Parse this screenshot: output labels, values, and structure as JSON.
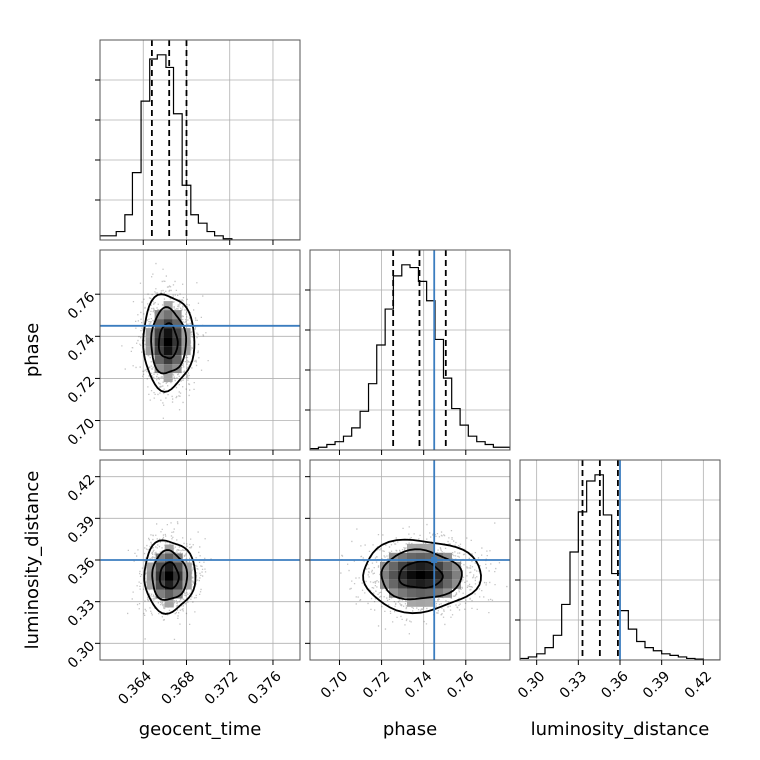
{
  "colors": {
    "truth": "#3b7dbf",
    "hist": "#000000",
    "grid": "#b0b0b0",
    "scatter": "#555555"
  },
  "chart_data": {
    "type": "corner",
    "parameters": [
      "geocent_time",
      "phase",
      "luminosity_distance"
    ],
    "axis_labels": {
      "x": [
        "geocent_time",
        "phase",
        "luminosity_distance"
      ],
      "y": [
        "",
        "phase",
        "luminosity_distance"
      ]
    },
    "ranges": [
      [
        0.36,
        0.3785
      ],
      [
        0.686,
        0.781
      ],
      [
        0.288,
        0.432
      ]
    ],
    "ticks": [
      {
        "values": [
          0.364,
          0.368,
          0.372,
          0.376
        ],
        "labels": [
          "0.364",
          "0.368",
          "0.372",
          "0.376"
        ]
      },
      {
        "values": [
          0.7,
          0.72,
          0.74,
          0.76
        ],
        "labels": [
          "0.70",
          "0.72",
          "0.74",
          "0.76"
        ]
      },
      {
        "values": [
          0.3,
          0.33,
          0.36,
          0.39,
          0.42
        ],
        "labels": [
          "0.30",
          "0.33",
          "0.36",
          "0.39",
          "0.42"
        ]
      }
    ],
    "truths": [
      null,
      0.745,
      0.36
    ],
    "quantiles": [
      [
        0.3648,
        0.3664,
        0.368
      ],
      [
        0.7255,
        0.738,
        0.7505
      ],
      [
        0.333,
        0.3455,
        0.3585
      ]
    ],
    "histograms": [
      {
        "param": "geocent_time",
        "bins": [
          0.36,
          0.3608,
          0.3615,
          0.3623,
          0.363,
          0.3638,
          0.3646,
          0.3653,
          0.3661,
          0.3668,
          0.3676,
          0.3684,
          0.3691,
          0.3699,
          0.3706,
          0.3714,
          0.3722,
          0.3729,
          0.3737,
          0.3745,
          0.3752,
          0.376,
          0.3768,
          0.3775,
          0.3785
        ],
        "counts": [
          1,
          1,
          2,
          6,
          16,
          33,
          43,
          44,
          41,
          30,
          13,
          6,
          4,
          2,
          1,
          0.3,
          0,
          0,
          0,
          0,
          0,
          0,
          0,
          0
        ]
      },
      {
        "param": "phase",
        "bins": [
          0.686,
          0.69,
          0.694,
          0.6979,
          0.7019,
          0.7058,
          0.7098,
          0.7138,
          0.7177,
          0.7217,
          0.7256,
          0.7296,
          0.7335,
          0.7375,
          0.7414,
          0.7454,
          0.7494,
          0.7533,
          0.7573,
          0.7612,
          0.7652,
          0.7692,
          0.7731,
          0.7771,
          0.781
        ],
        "counts": [
          0.5,
          1,
          2,
          3,
          5,
          8,
          14,
          24,
          38,
          51,
          63,
          67,
          66,
          61,
          54,
          40,
          26,
          15,
          9,
          5,
          3,
          2,
          1,
          1
        ]
      },
      {
        "param": "luminosity_distance",
        "bins": [
          0.288,
          0.294,
          0.3,
          0.306,
          0.312,
          0.318,
          0.324,
          0.33,
          0.336,
          0.342,
          0.348,
          0.354,
          0.36,
          0.366,
          0.372,
          0.378,
          0.384,
          0.39,
          0.396,
          0.402,
          0.408,
          0.414,
          0.42,
          0.426,
          0.432
        ],
        "counts": [
          0.5,
          1,
          2,
          4,
          8,
          18,
          35,
          48,
          58,
          60,
          47,
          28,
          16,
          10,
          6,
          4,
          3,
          2,
          1.5,
          1,
          0.5,
          0.3,
          0,
          0
        ]
      }
    ],
    "joint_2d": [
      {
        "x_param": "geocent_time",
        "y_param": "phase",
        "center": [
          0.3663,
          0.7375
        ],
        "spread": [
          0.0011,
          0.0105
        ],
        "contour_levels": [
          1,
          2,
          3
        ]
      },
      {
        "x_param": "geocent_time",
        "y_param": "luminosity_distance",
        "center": [
          0.3664,
          0.3485
        ],
        "spread": [
          0.0011,
          0.012
        ],
        "contour_levels": [
          1,
          2,
          3
        ]
      },
      {
        "x_param": "phase",
        "y_param": "luminosity_distance",
        "center": [
          0.7385,
          0.349
        ],
        "spread": [
          0.013,
          0.012
        ],
        "contour_levels": [
          1,
          2,
          3
        ]
      }
    ]
  }
}
